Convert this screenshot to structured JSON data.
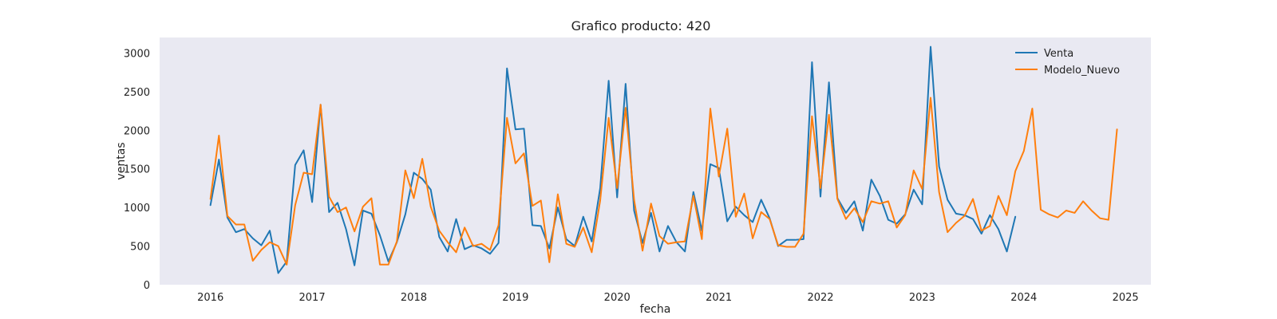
{
  "chart_data": {
    "type": "line",
    "title": "Grafico producto: 420",
    "xlabel": "fecha",
    "ylabel": "ventas",
    "x_ticks": [
      "2016",
      "2017",
      "2018",
      "2019",
      "2020",
      "2021",
      "2022",
      "2023",
      "2024",
      "2025"
    ],
    "y_ticks": [
      "0",
      "500",
      "1000",
      "1500",
      "2000",
      "2500",
      "3000"
    ],
    "ylim": [
      0,
      3200
    ],
    "xlim": [
      "2015-07",
      "2025-04"
    ],
    "grid": false,
    "legend": "top-right",
    "background": "#e9e9f2",
    "series": [
      {
        "name": "Venta",
        "color": "#1f77b4",
        "start": "2016-01",
        "frequency": "monthly",
        "values": [
          1030,
          1620,
          870,
          680,
          720,
          600,
          510,
          700,
          150,
          300,
          1550,
          1740,
          1070,
          2330,
          940,
          1060,
          720,
          250,
          960,
          920,
          640,
          300,
          550,
          910,
          1450,
          1370,
          1230,
          620,
          430,
          850,
          460,
          510,
          470,
          400,
          540,
          2800,
          2010,
          2020,
          770,
          760,
          470,
          1000,
          590,
          500,
          880,
          560,
          1250,
          2640,
          1130,
          2600,
          960,
          540,
          930,
          430,
          760,
          550,
          430,
          1200,
          700,
          1560,
          1510,
          820,
          1010,
          900,
          810,
          1100,
          860,
          500,
          580,
          580,
          590,
          2880,
          1140,
          2620,
          1120,
          930,
          1080,
          700,
          1360,
          1150,
          840,
          790,
          910,
          1230,
          1040,
          3080,
          1530,
          1100,
          920,
          900,
          850,
          660,
          900,
          720,
          430,
          880
        ]
      },
      {
        "name": "Modelo_Nuevo",
        "color": "#ff7f0e",
        "start": "2016-01",
        "frequency": "monthly",
        "values": [
          1110,
          1930,
          890,
          780,
          780,
          310,
          450,
          550,
          500,
          260,
          1030,
          1450,
          1430,
          2330,
          1140,
          940,
          1000,
          690,
          1010,
          1120,
          260,
          260,
          560,
          1480,
          1120,
          1630,
          1010,
          700,
          550,
          420,
          740,
          500,
          530,
          450,
          770,
          2160,
          1570,
          1700,
          1020,
          1090,
          290,
          1170,
          530,
          490,
          740,
          420,
          1090,
          2160,
          1250,
          2290,
          1100,
          440,
          1050,
          630,
          530,
          550,
          560,
          1150,
          590,
          2280,
          1400,
          2020,
          880,
          1180,
          600,
          940,
          850,
          510,
          490,
          490,
          660,
          2180,
          1250,
          2200,
          1110,
          850,
          990,
          810,
          1080,
          1050,
          1080,
          740,
          900,
          1480,
          1240,
          2420,
          1200,
          680,
          800,
          890,
          1110,
          700,
          760,
          1150,
          900,
          1470,
          1730,
          2280,
          970,
          910,
          870,
          960,
          930,
          1080,
          960,
          860,
          840,
          2010
        ]
      }
    ]
  }
}
